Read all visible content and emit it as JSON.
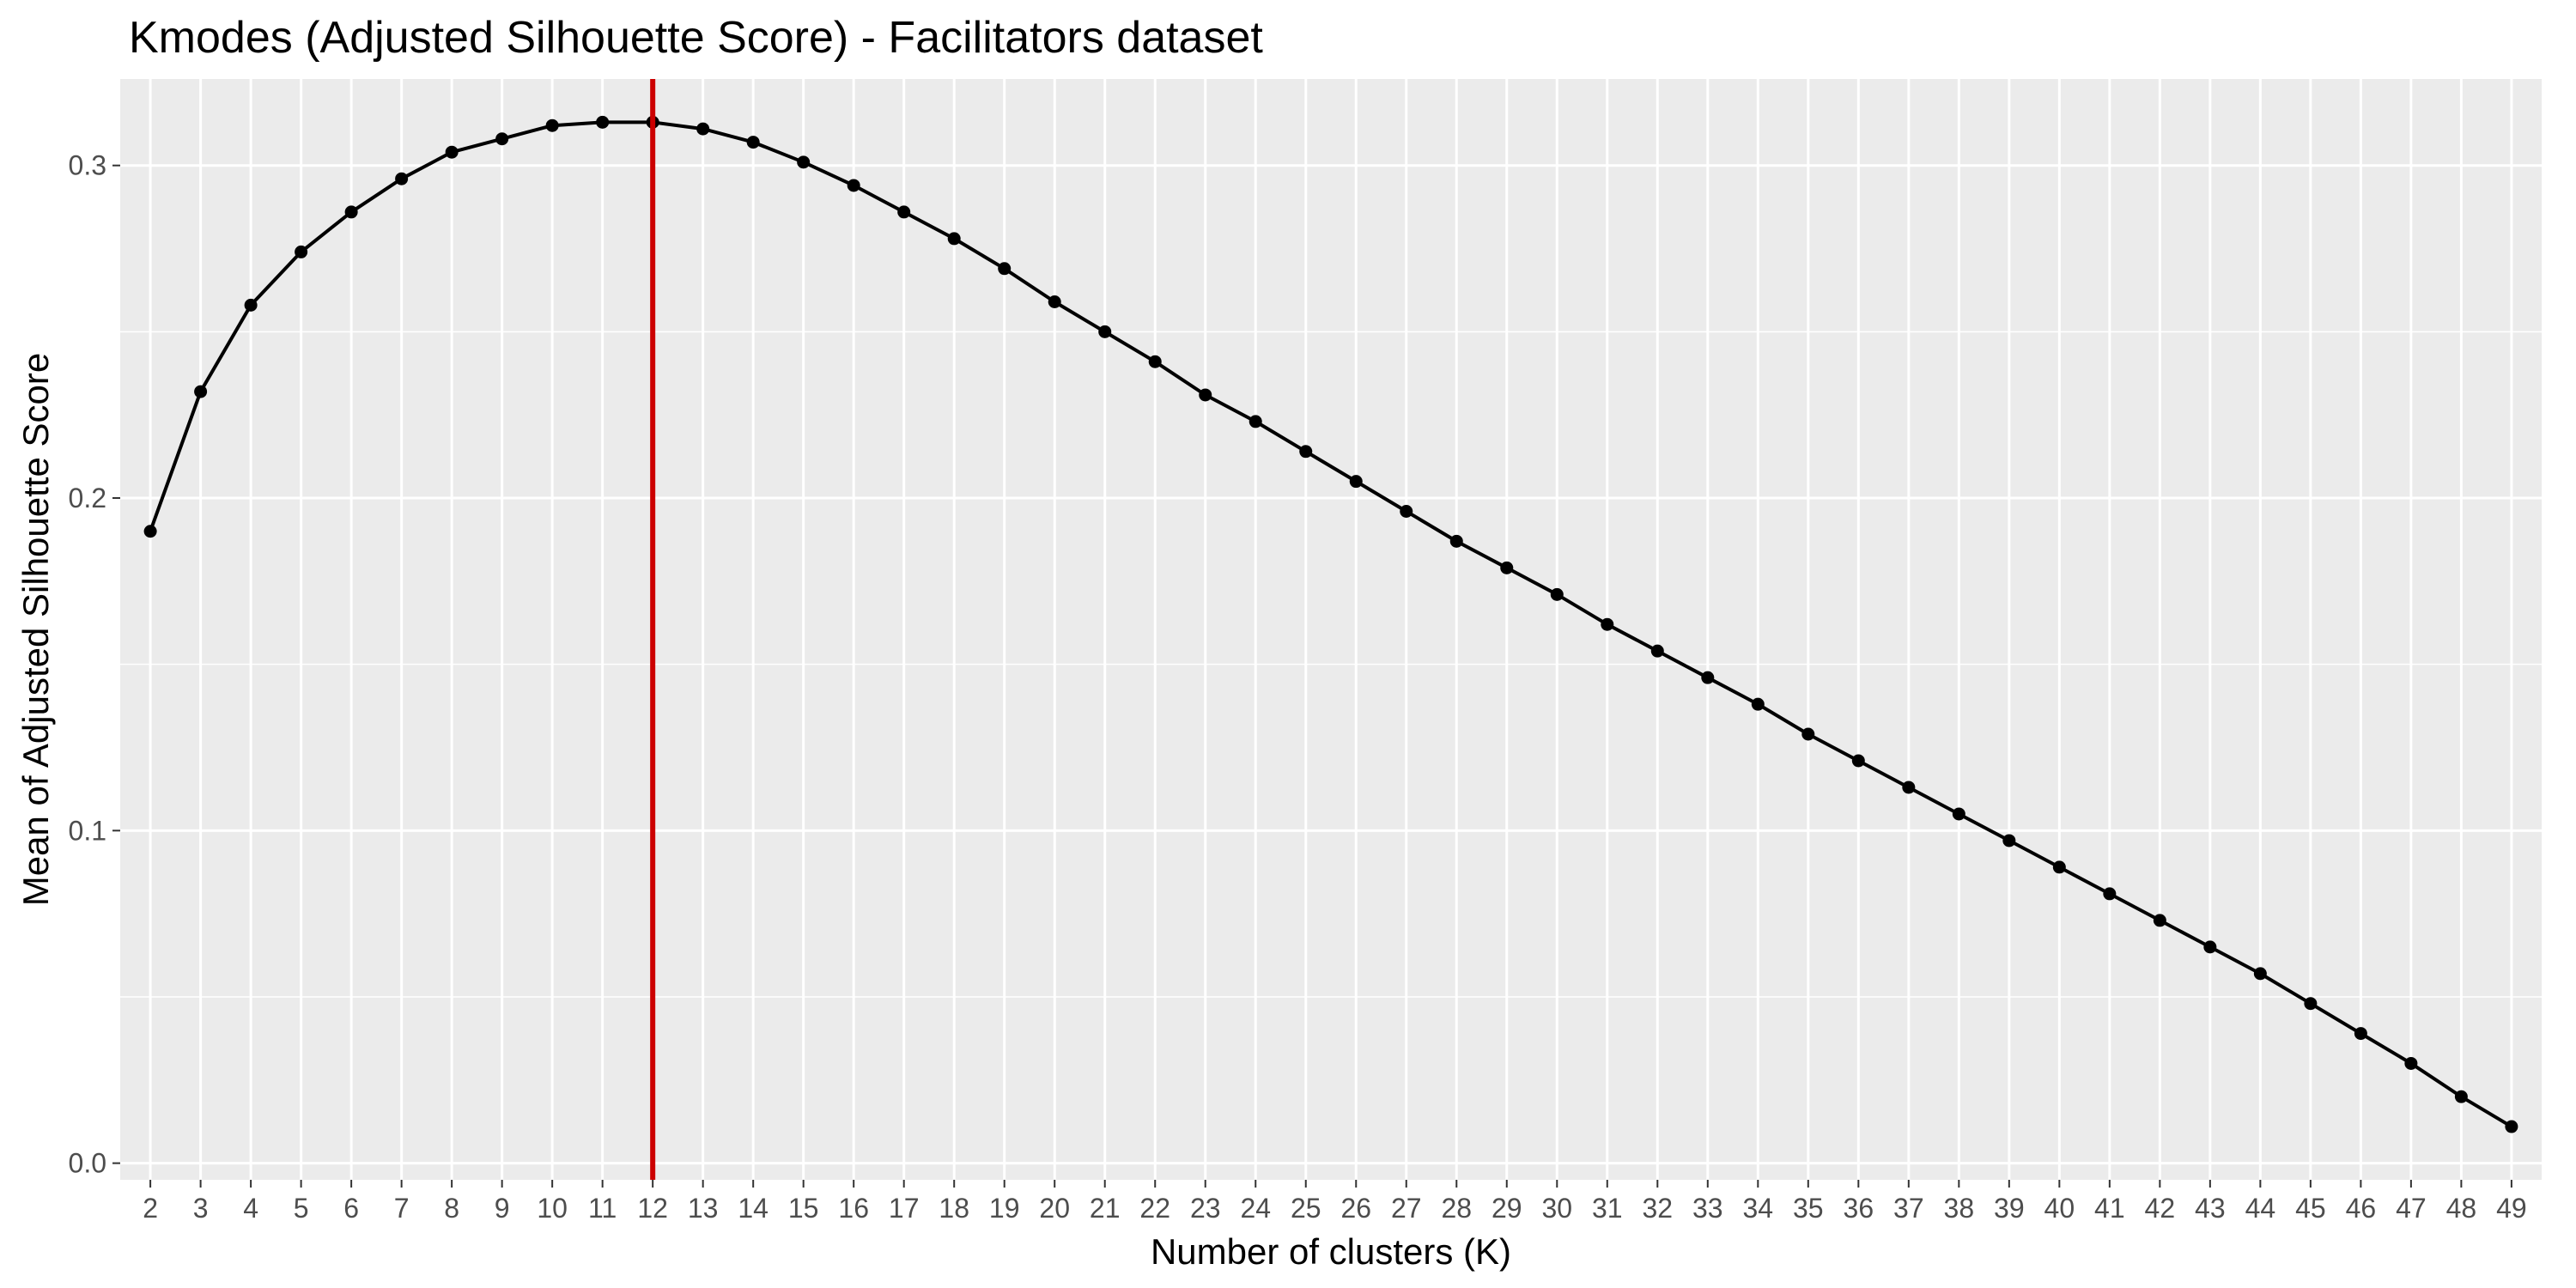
{
  "chart_data": {
    "type": "line",
    "title": "Kmodes (Adjusted Silhouette Score) - Facilitators dataset",
    "xlabel": "Number of clusters (K)",
    "ylabel": "Mean of Adjusted Silhouette Score",
    "xlim": [
      1.4,
      49.6
    ],
    "ylim": [
      -0.005,
      0.326
    ],
    "grid": true,
    "x_ticks": [
      2,
      3,
      4,
      5,
      6,
      7,
      8,
      9,
      10,
      11,
      12,
      13,
      14,
      15,
      16,
      17,
      18,
      19,
      20,
      21,
      22,
      23,
      24,
      25,
      26,
      27,
      28,
      29,
      30,
      31,
      32,
      33,
      34,
      35,
      36,
      37,
      38,
      39,
      40,
      41,
      42,
      43,
      44,
      45,
      46,
      47,
      48,
      49
    ],
    "y_ticks": [
      0.0,
      0.1,
      0.2,
      0.3
    ],
    "y_tick_labels": [
      "0.0",
      "0.1",
      "0.2",
      "0.3"
    ],
    "vline": {
      "x": 12,
      "color": "#cc0000"
    },
    "series": [
      {
        "color": "#000000",
        "x": [
          2,
          3,
          4,
          5,
          6,
          7,
          8,
          9,
          10,
          11,
          12,
          13,
          14,
          15,
          16,
          17,
          18,
          19,
          20,
          21,
          22,
          23,
          24,
          25,
          26,
          27,
          28,
          29,
          30,
          31,
          32,
          33,
          34,
          35,
          36,
          37,
          38,
          39,
          40,
          41,
          42,
          43,
          44,
          45,
          46,
          47,
          48,
          49
        ],
        "y": [
          0.19,
          0.232,
          0.258,
          0.274,
          0.286,
          0.296,
          0.304,
          0.308,
          0.312,
          0.313,
          0.313,
          0.311,
          0.307,
          0.301,
          0.294,
          0.286,
          0.278,
          0.269,
          0.259,
          0.25,
          0.241,
          0.231,
          0.223,
          0.214,
          0.205,
          0.196,
          0.187,
          0.179,
          0.171,
          0.162,
          0.154,
          0.146,
          0.138,
          0.129,
          0.121,
          0.113,
          0.105,
          0.097,
          0.089,
          0.081,
          0.073,
          0.065,
          0.057,
          0.048,
          0.039,
          0.03,
          0.02,
          0.011
        ]
      }
    ]
  }
}
